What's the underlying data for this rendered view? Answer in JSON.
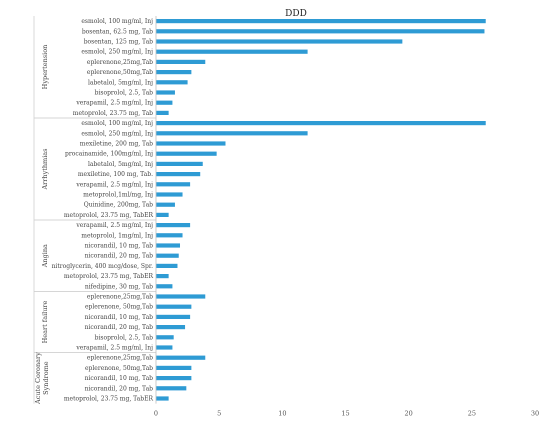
{
  "chart_data": {
    "type": "bar",
    "orientation": "horizontal",
    "title": "DDD",
    "xlim": [
      0,
      30
    ],
    "xticks": [
      0,
      5,
      10,
      15,
      20,
      25,
      30
    ],
    "bar_color": "#2e9bd4",
    "grid": false,
    "groups": [
      {
        "name": "Hypertension",
        "items": [
          {
            "label": "esmolol, 100 mg/ml, Inj",
            "value": 26.1
          },
          {
            "label": "bosentan, 62.5 mg, Tab",
            "value": 26.0
          },
          {
            "label": "bosentan, 125 mg, Tab",
            "value": 19.5
          },
          {
            "label": "esmolol, 250 mg/ml, Inj",
            "value": 12.0
          },
          {
            "label": "eplerenone,25mg,Tab",
            "value": 3.9
          },
          {
            "label": "eplerenone,50mg,Tab",
            "value": 2.8
          },
          {
            "label": "labetalol, 5mg/ml, Inj",
            "value": 2.5
          },
          {
            "label": "bisoprolol, 2.5, Tab",
            "value": 1.5
          },
          {
            "label": "verapamil, 2.5 mg/ml, Inj",
            "value": 1.3
          },
          {
            "label": "metoprolol, 23.75 mg, Tab",
            "value": 1.0
          }
        ]
      },
      {
        "name": "Arrhythmias",
        "items": [
          {
            "label": "esmolol, 100 mg/ml, Inj",
            "value": 26.1
          },
          {
            "label": "esmolol, 250 mg/ml, Inj",
            "value": 12.0
          },
          {
            "label": "mexiletine, 200 mg, Tab",
            "value": 5.5
          },
          {
            "label": "procainamide, 100mg/ml, Inj",
            "value": 4.8
          },
          {
            "label": "labetalol, 5mg/ml, Inj",
            "value": 3.7
          },
          {
            "label": "mexiletine, 100 mg, Tab.",
            "value": 3.5
          },
          {
            "label": "verapamil, 2.5 mg/ml, Inj",
            "value": 2.7
          },
          {
            "label": "metoprolol,1ml/mg, Inj",
            "value": 2.1
          },
          {
            "label": "Quinidine, 200mg, Tab",
            "value": 1.5
          },
          {
            "label": "metoprolol, 23.75 mg, TabER",
            "value": 1.0
          }
        ]
      },
      {
        "name": "Angina",
        "items": [
          {
            "label": "verapamil, 2.5 mg/ml, Inj",
            "value": 2.7
          },
          {
            "label": "metoprolol, 1mg/ml, Inj",
            "value": 2.1
          },
          {
            "label": "nicorandil, 10 mg, Tab",
            "value": 1.9
          },
          {
            "label": "nicorandil, 20 mg, Tab",
            "value": 1.8
          },
          {
            "label": "nitroglycerin, 400 mcg/dose, Spr.",
            "value": 1.7
          },
          {
            "label": "metoprolol, 23.75 mg, TabER",
            "value": 1.0
          },
          {
            "label": "nifedipine, 30 mg, Tab",
            "value": 1.3
          }
        ]
      },
      {
        "name": "Heart failure",
        "items": [
          {
            "label": "eplerenone,25mg,Tab",
            "value": 3.9
          },
          {
            "label": "eplerenone, 50mg,Tab",
            "value": 2.8
          },
          {
            "label": "nicorandil, 10 mg, Tab",
            "value": 2.7
          },
          {
            "label": "nicorandil, 20 mg, Tab",
            "value": 2.3
          },
          {
            "label": "bisoprolol, 2.5, Tab",
            "value": 1.4
          },
          {
            "label": "verapamil, 2.5 mg/ml, Inj",
            "value": 1.3
          }
        ]
      },
      {
        "name": "Acute Coronary Syndrome",
        "items": [
          {
            "label": "eplerenone,25mg,Tab",
            "value": 3.9
          },
          {
            "label": "eplerenone, 50mg,Tab",
            "value": 2.8
          },
          {
            "label": "nicorandil, 10 mg, Tab",
            "value": 2.8
          },
          {
            "label": "nicorandil, 20 mg, Tab",
            "value": 2.4
          },
          {
            "label": "metoprolol, 23.75 mg, TabER",
            "value": 1.0
          }
        ]
      }
    ]
  }
}
